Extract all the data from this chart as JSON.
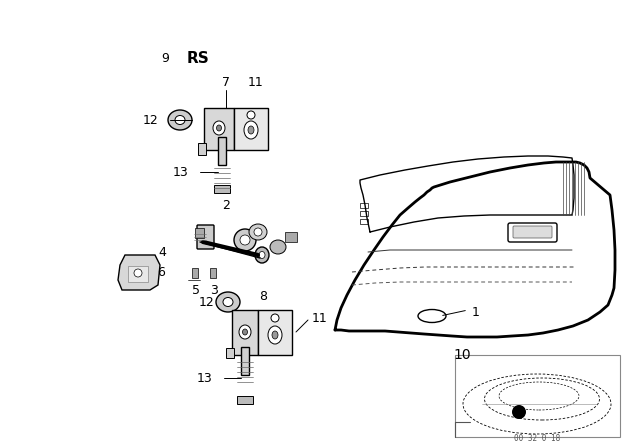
{
  "bg_color": "#ffffff",
  "fig_width": 6.4,
  "fig_height": 4.48,
  "dpi": 100,
  "label_fontsize": 8,
  "rs_fontsize": 10,
  "num_fontsize": 9,
  "watermark_text": "00 32 0 18",
  "part10_label": "10",
  "part1_label": "1",
  "lc": "#000000",
  "gray1": "#aaaaaa",
  "gray2": "#cccccc",
  "gray3": "#e0e0e0"
}
